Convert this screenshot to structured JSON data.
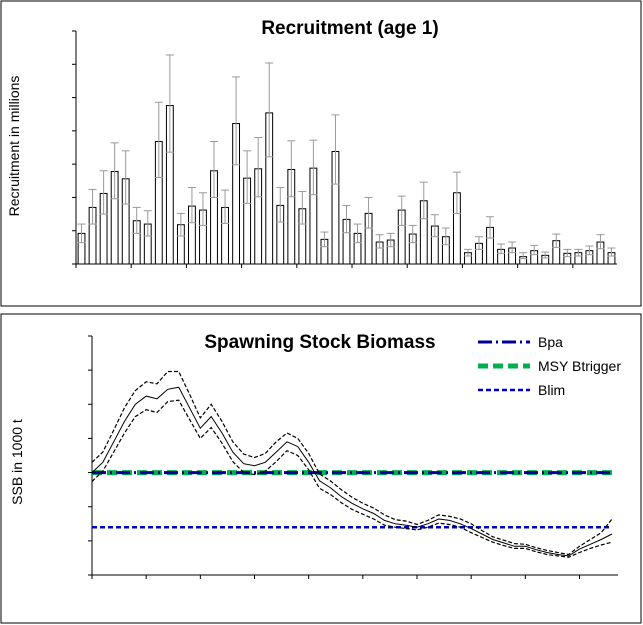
{
  "chart_data": [
    {
      "type": "bar",
      "title": "Recruitment (age 1)",
      "ylabel": "Recruitment in millions",
      "xlabel": "",
      "ylim": [
        0,
        3500
      ],
      "yticks": [
        0,
        500,
        1000,
        1500,
        2000,
        2500,
        3000,
        3500
      ],
      "xticks": [
        1963,
        1968,
        1973,
        1978,
        1983,
        1988,
        1993,
        1998,
        2003,
        2008
      ],
      "grid": false,
      "bar_color": "#ffffff",
      "error_bar_color": "#999999",
      "years": [
        1963,
        1964,
        1965,
        1966,
        1967,
        1968,
        1969,
        1970,
        1971,
        1972,
        1973,
        1974,
        1975,
        1976,
        1977,
        1978,
        1979,
        1980,
        1981,
        1982,
        1983,
        1984,
        1985,
        1986,
        1987,
        1988,
        1989,
        1990,
        1991,
        1992,
        1993,
        1994,
        1995,
        1996,
        1997,
        1998,
        1999,
        2000,
        2001,
        2002,
        2003,
        2004,
        2005,
        2006,
        2007,
        2008,
        2009,
        2010,
        2011
      ],
      "values": [
        460,
        850,
        1060,
        1390,
        1280,
        650,
        600,
        1840,
        2380,
        590,
        870,
        810,
        1400,
        850,
        2110,
        1290,
        1430,
        2270,
        880,
        1420,
        830,
        1440,
        370,
        1690,
        670,
        460,
        760,
        330,
        360,
        810,
        450,
        950,
        570,
        410,
        1070,
        170,
        310,
        550,
        220,
        240,
        110,
        200,
        130,
        350,
        160,
        170,
        200,
        330,
        170
      ],
      "upper": [
        600,
        1120,
        1400,
        1820,
        1700,
        850,
        800,
        2430,
        3140,
        760,
        1150,
        1070,
        1840,
        1110,
        2810,
        1700,
        1900,
        3020,
        1150,
        1850,
        1090,
        1860,
        480,
        2240,
        880,
        600,
        1000,
        440,
        460,
        1020,
        580,
        1230,
        740,
        540,
        1380,
        220,
        410,
        710,
        300,
        330,
        170,
        280,
        180,
        450,
        220,
        220,
        270,
        440,
        240
      ],
      "lower": [
        320,
        600,
        750,
        980,
        900,
        460,
        420,
        1300,
        1680,
        420,
        620,
        580,
        1000,
        610,
        1490,
        910,
        1010,
        1610,
        630,
        1010,
        600,
        1040,
        260,
        1200,
        470,
        320,
        540,
        240,
        260,
        580,
        320,
        680,
        410,
        290,
        760,
        120,
        220,
        390,
        160,
        170,
        80,
        140,
        90,
        250,
        110,
        120,
        140,
        230,
        120
      ]
    },
    {
      "type": "line",
      "title": "Spawning Stock Biomass",
      "ylabel": "SSB in 1000 t",
      "xlabel": "",
      "ylim": [
        0,
        350
      ],
      "yticks": [
        0,
        50,
        100,
        150,
        200,
        250,
        300,
        350
      ],
      "xticks": [
        1963,
        1968,
        1973,
        1978,
        1983,
        1988,
        1993,
        1998,
        2003,
        2008
      ],
      "grid": false,
      "legend_position": "top-right",
      "x": [
        1963,
        1964,
        1965,
        1966,
        1967,
        1968,
        1969,
        1970,
        1971,
        1972,
        1973,
        1974,
        1975,
        1976,
        1977,
        1978,
        1979,
        1980,
        1981,
        1982,
        1983,
        1984,
        1985,
        1986,
        1987,
        1988,
        1989,
        1990,
        1991,
        1992,
        1993,
        1994,
        1995,
        1996,
        1997,
        1998,
        1999,
        2000,
        2001,
        2002,
        2003,
        2004,
        2005,
        2006,
        2007,
        2008,
        2009,
        2010,
        2011
      ],
      "ssb": [
        150,
        165,
        195,
        225,
        250,
        262,
        258,
        272,
        275,
        245,
        215,
        232,
        208,
        180,
        163,
        160,
        165,
        180,
        195,
        188,
        165,
        138,
        128,
        115,
        105,
        97,
        90,
        80,
        75,
        73,
        70,
        75,
        82,
        80,
        75,
        68,
        60,
        52,
        47,
        42,
        42,
        37,
        33,
        30,
        28,
        38,
        45,
        52,
        60
      ],
      "ssb_upper": [
        165,
        180,
        212,
        245,
        270,
        283,
        280,
        298,
        298,
        265,
        230,
        250,
        225,
        195,
        177,
        172,
        178,
        195,
        208,
        200,
        178,
        148,
        138,
        125,
        114,
        105,
        98,
        88,
        81,
        79,
        74,
        80,
        88,
        86,
        82,
        75,
        65,
        56,
        51,
        46,
        45,
        40,
        36,
        33,
        30,
        42,
        52,
        62,
        82
      ],
      "ssb_lower": [
        137,
        152,
        180,
        208,
        232,
        242,
        238,
        254,
        256,
        228,
        200,
        216,
        193,
        166,
        150,
        147,
        152,
        166,
        182,
        175,
        154,
        127,
        118,
        106,
        96,
        89,
        82,
        73,
        70,
        68,
        66,
        70,
        76,
        74,
        70,
        62,
        55,
        48,
        43,
        39,
        39,
        34,
        30,
        28,
        26,
        33,
        39,
        44,
        48
      ],
      "reference_lines": [
        {
          "name": "Bpa",
          "value": 150,
          "color": "#000099"
        },
        {
          "name": "MSY Btrigger",
          "value": 150,
          "color": "#00b050"
        },
        {
          "name": "Blim",
          "value": 70,
          "color": "#0000cc"
        }
      ]
    }
  ]
}
